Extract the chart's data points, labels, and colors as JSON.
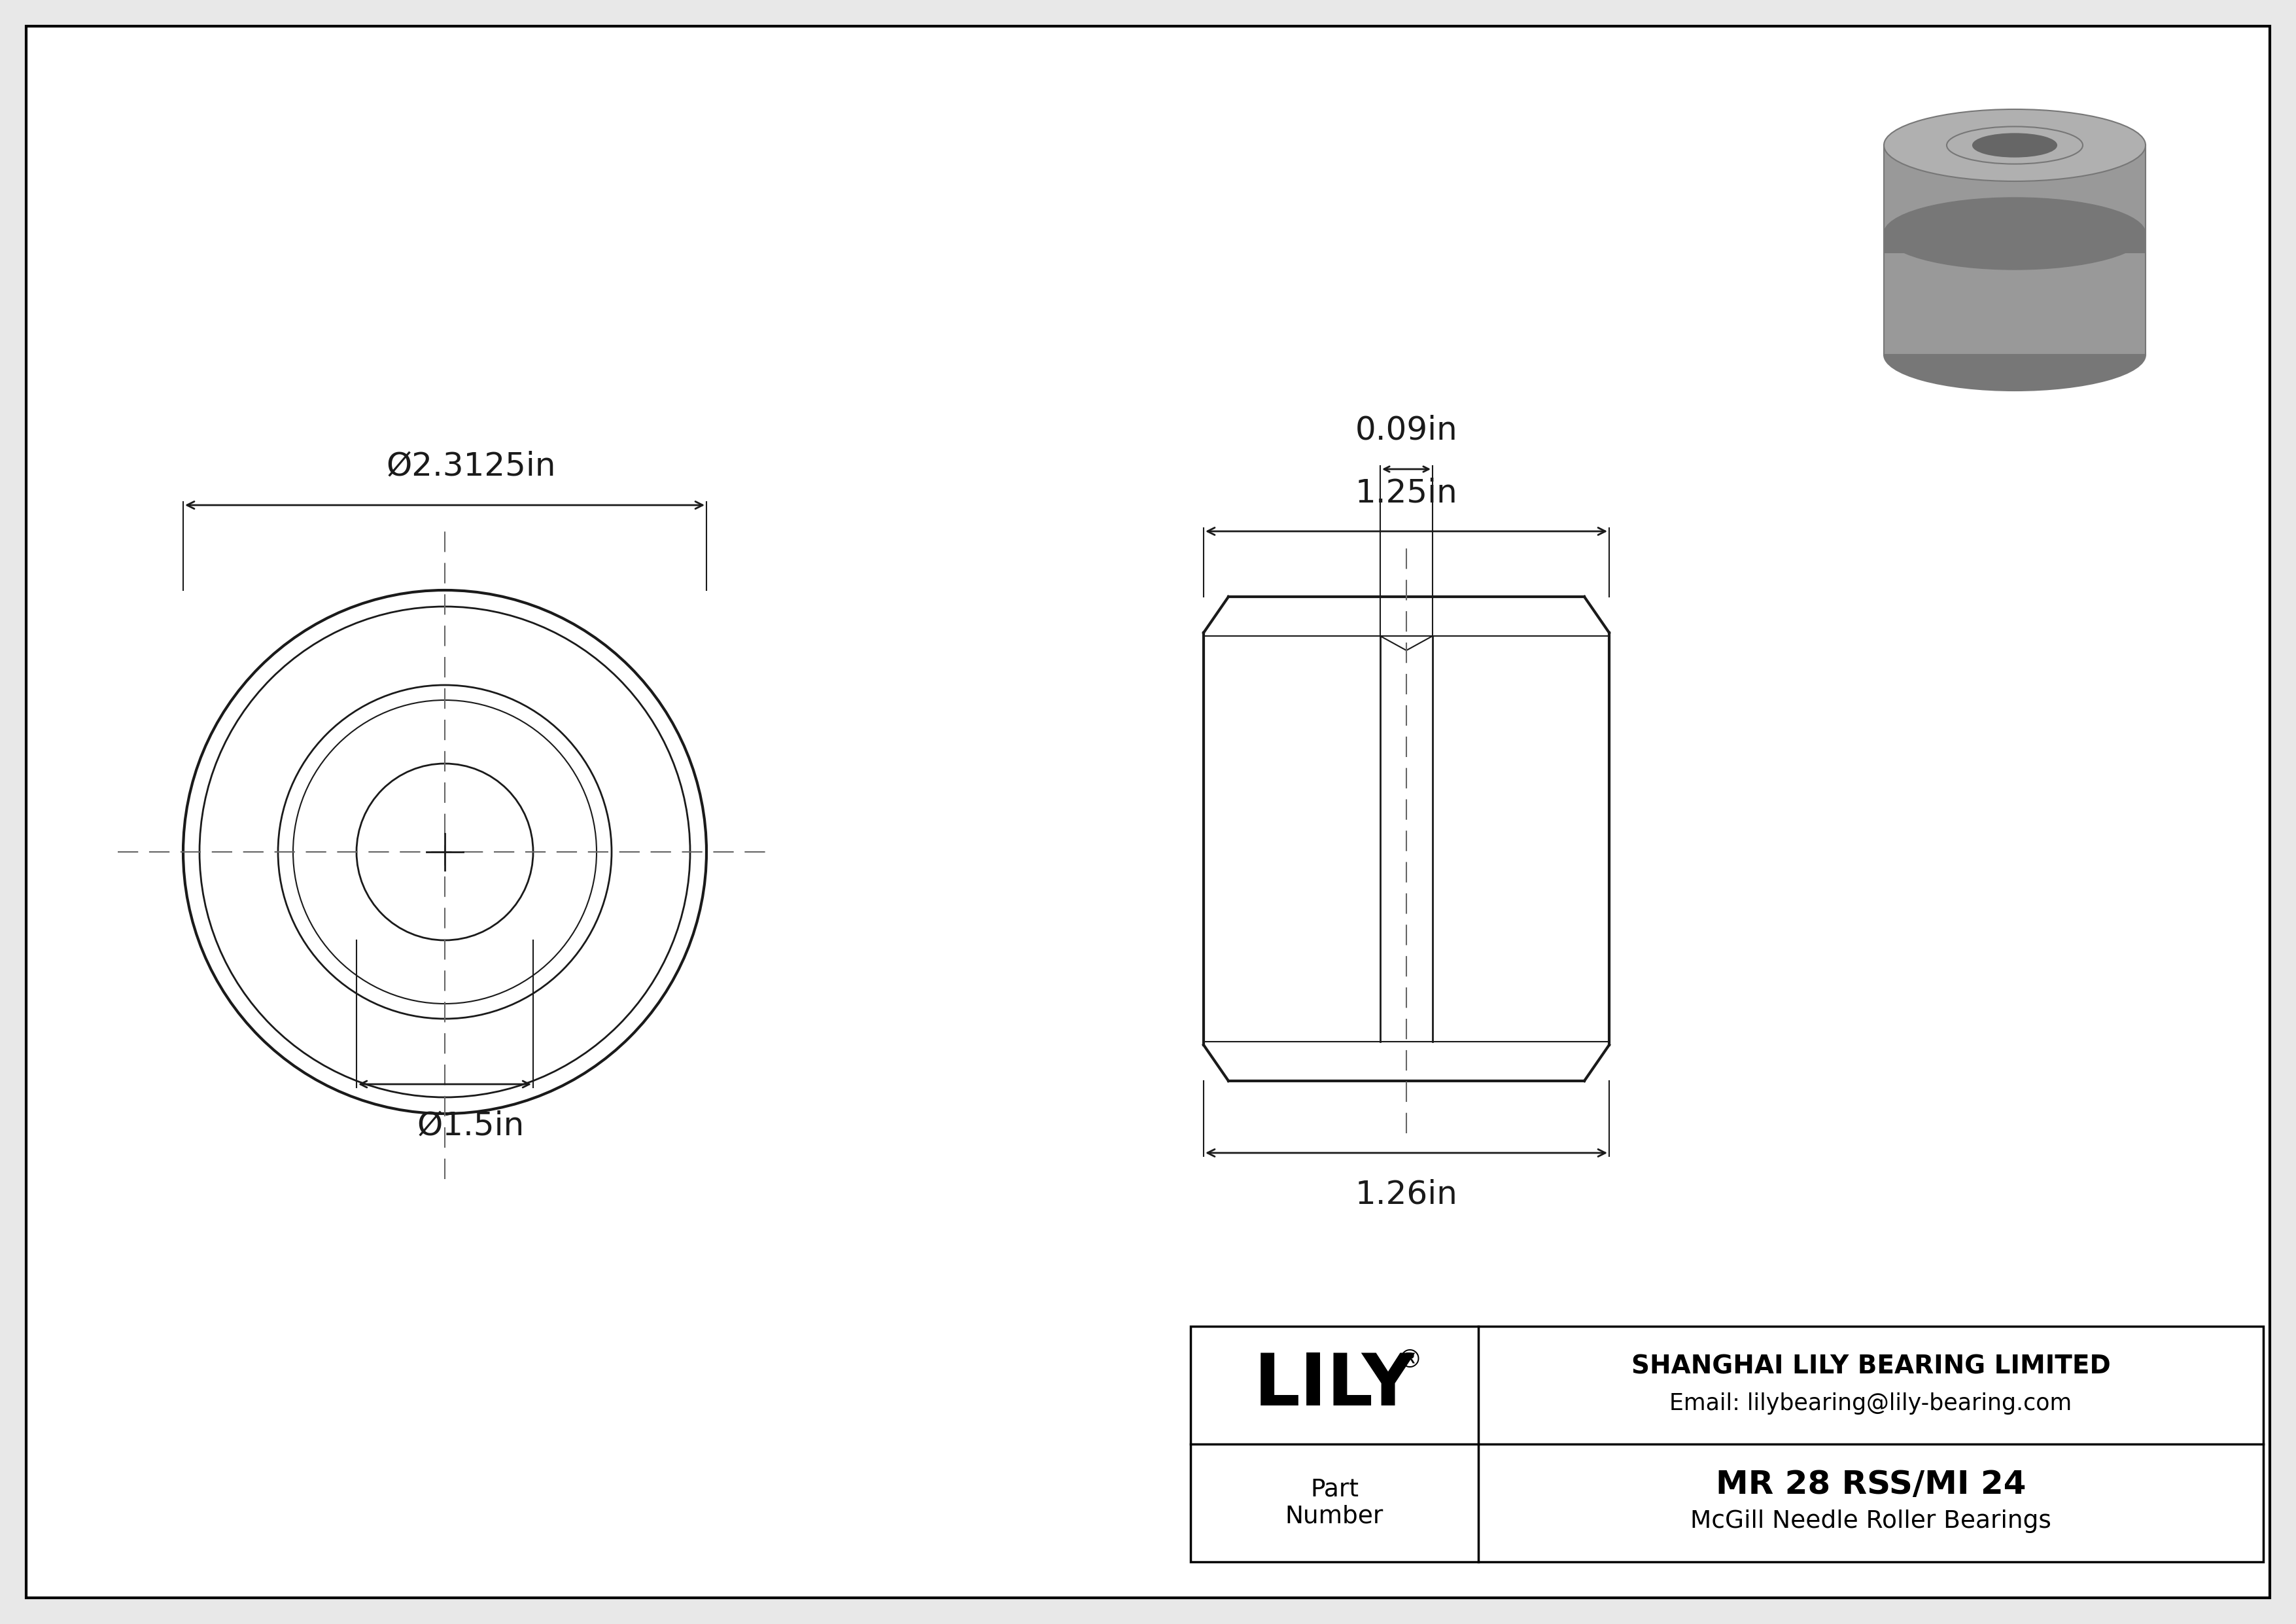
{
  "bg_color": "#e8e8e8",
  "border_color": "#000000",
  "line_color": "#1a1a1a",
  "dim_color": "#1a1a1a",
  "dashed_color": "#666666",
  "part_number": "MR 28 RSS/MI 24",
  "part_type": "McGill Needle Roller Bearings",
  "company": "SHANGHAI LILY BEARING LIMITED",
  "email": "Email: lilybearing@lily-bearing.com",
  "logo": "LILY",
  "outer_diameter_label": "Ø2.3125in",
  "inner_diameter_label": "Ø1.5in",
  "width_label": "1.25in",
  "inner_width_label": "0.09in",
  "height_label": "1.26in",
  "lw_thick": 3.0,
  "lw_medium": 2.0,
  "lw_thin": 1.5
}
